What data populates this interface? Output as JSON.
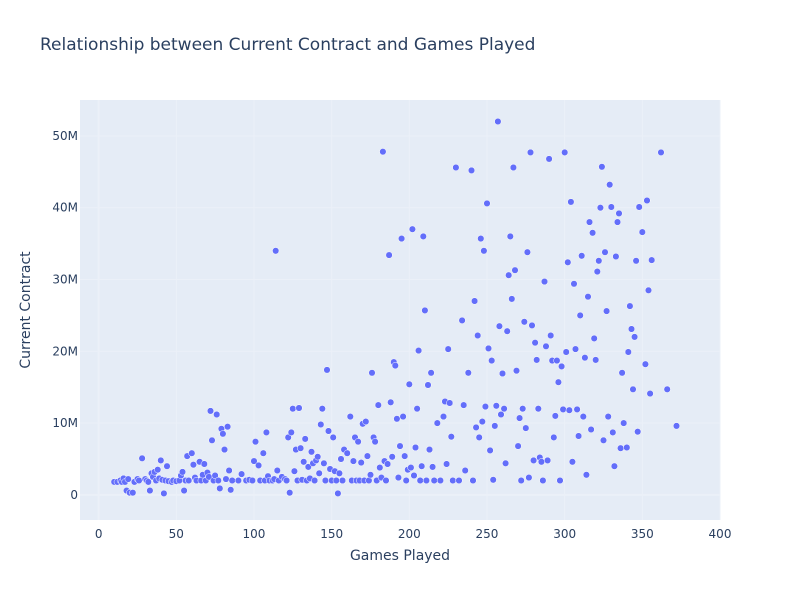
{
  "chart_data": {
    "type": "scatter",
    "title": "Relationship between Current Contract and Games Played",
    "xlabel": "Games Played",
    "ylabel": "Current Contract",
    "xlim": [
      -12,
      400
    ],
    "ylim": [
      -3500000,
      55000000
    ],
    "x_ticks": [
      0,
      50,
      100,
      150,
      200,
      250,
      300,
      350,
      400
    ],
    "x_tick_labels": [
      "0",
      "50",
      "100",
      "150",
      "200",
      "250",
      "300",
      "350",
      "400"
    ],
    "y_ticks": [
      0,
      10000000,
      20000000,
      30000000,
      40000000,
      50000000
    ],
    "y_tick_labels": [
      "0",
      "10M",
      "20M",
      "30M",
      "40M",
      "50M"
    ],
    "grid": true,
    "legend": "none",
    "marker_color": "#636efa",
    "series": [
      {
        "points": [
          [
            10,
            1.8
          ],
          [
            12,
            1.8
          ],
          [
            14,
            2.0
          ],
          [
            15,
            1.8
          ],
          [
            16,
            2.3
          ],
          [
            17,
            1.8
          ],
          [
            18,
            0.6
          ],
          [
            19,
            2.2
          ],
          [
            20,
            0.3
          ],
          [
            22,
            0.3
          ],
          [
            23,
            1.8
          ],
          [
            25,
            2.2
          ],
          [
            26,
            2.0
          ],
          [
            28,
            5.1
          ],
          [
            30,
            2.2
          ],
          [
            31,
            2.0
          ],
          [
            32,
            1.8
          ],
          [
            33,
            0.6
          ],
          [
            34,
            3.0
          ],
          [
            35,
            2.5
          ],
          [
            36,
            3.2
          ],
          [
            37,
            2.0
          ],
          [
            38,
            3.5
          ],
          [
            39,
            2.3
          ],
          [
            40,
            4.8
          ],
          [
            41,
            2.1
          ],
          [
            42,
            0.2
          ],
          [
            43,
            2.0
          ],
          [
            44,
            4.0
          ],
          [
            45,
            1.9
          ],
          [
            47,
            1.8
          ],
          [
            48,
            2.0
          ],
          [
            50,
            1.9
          ],
          [
            52,
            2.0
          ],
          [
            53,
            2.7
          ],
          [
            54,
            3.2
          ],
          [
            55,
            0.6
          ],
          [
            56,
            2.0
          ],
          [
            57,
            5.4
          ],
          [
            58,
            2.0
          ],
          [
            60,
            5.8
          ],
          [
            61,
            4.2
          ],
          [
            62,
            2.4
          ],
          [
            63,
            2.0
          ],
          [
            65,
            4.6
          ],
          [
            66,
            2.0
          ],
          [
            67,
            2.8
          ],
          [
            68,
            4.3
          ],
          [
            69,
            2.0
          ],
          [
            70,
            3.1
          ],
          [
            71,
            2.5
          ],
          [
            72,
            11.7
          ],
          [
            73,
            7.6
          ],
          [
            74,
            2.0
          ],
          [
            75,
            2.7
          ],
          [
            76,
            11.2
          ],
          [
            77,
            2.0
          ],
          [
            78,
            0.9
          ],
          [
            79,
            9.2
          ],
          [
            80,
            8.5
          ],
          [
            81,
            6.3
          ],
          [
            82,
            2.2
          ],
          [
            83,
            9.5
          ],
          [
            84,
            3.4
          ],
          [
            85,
            0.7
          ],
          [
            86,
            2.0
          ],
          [
            90,
            2.0
          ],
          [
            92,
            2.9
          ],
          [
            95,
            2.0
          ],
          [
            97,
            2.1
          ],
          [
            99,
            2.0
          ],
          [
            100,
            4.7
          ],
          [
            101,
            7.4
          ],
          [
            103,
            4.1
          ],
          [
            104,
            2.0
          ],
          [
            106,
            5.8
          ],
          [
            107,
            2.0
          ],
          [
            108,
            8.7
          ],
          [
            109,
            2.6
          ],
          [
            110,
            2.0
          ],
          [
            112,
            2.0
          ],
          [
            113,
            2.2
          ],
          [
            114,
            34.0
          ],
          [
            115,
            3.4
          ],
          [
            116,
            2.0
          ],
          [
            118,
            2.5
          ],
          [
            120,
            2.2
          ],
          [
            121,
            2.0
          ],
          [
            122,
            8.0
          ],
          [
            123,
            0.3
          ],
          [
            124,
            8.7
          ],
          [
            125,
            12.0
          ],
          [
            126,
            3.3
          ],
          [
            127,
            6.3
          ],
          [
            128,
            2.0
          ],
          [
            129,
            12.1
          ],
          [
            130,
            6.5
          ],
          [
            131,
            2.1
          ],
          [
            132,
            4.6
          ],
          [
            133,
            7.8
          ],
          [
            134,
            2.0
          ],
          [
            135,
            3.9
          ],
          [
            136,
            2.3
          ],
          [
            137,
            6.0
          ],
          [
            138,
            4.4
          ],
          [
            139,
            2.0
          ],
          [
            140,
            4.8
          ],
          [
            141,
            5.3
          ],
          [
            142,
            3.0
          ],
          [
            143,
            9.8
          ],
          [
            144,
            12.0
          ],
          [
            145,
            4.4
          ],
          [
            146,
            2.0
          ],
          [
            147,
            17.4
          ],
          [
            148,
            8.9
          ],
          [
            149,
            3.6
          ],
          [
            150,
            2.0
          ],
          [
            151,
            8.0
          ],
          [
            152,
            3.3
          ],
          [
            153,
            2.0
          ],
          [
            154,
            0.2
          ],
          [
            155,
            3.0
          ],
          [
            156,
            5.0
          ],
          [
            157,
            2.0
          ],
          [
            158,
            6.3
          ],
          [
            160,
            5.8
          ],
          [
            162,
            10.9
          ],
          [
            163,
            2.0
          ],
          [
            164,
            4.7
          ],
          [
            165,
            8.0
          ],
          [
            166,
            2.0
          ],
          [
            167,
            7.4
          ],
          [
            168,
            2.0
          ],
          [
            169,
            4.5
          ],
          [
            170,
            9.9
          ],
          [
            171,
            2.0
          ],
          [
            172,
            10.2
          ],
          [
            173,
            5.4
          ],
          [
            174,
            2.0
          ],
          [
            175,
            2.8
          ],
          [
            176,
            17.0
          ],
          [
            177,
            8.0
          ],
          [
            178,
            7.4
          ],
          [
            179,
            2.0
          ],
          [
            180,
            12.5
          ],
          [
            181,
            3.8
          ],
          [
            182,
            2.4
          ],
          [
            183,
            47.8
          ],
          [
            184,
            4.7
          ],
          [
            185,
            2.0
          ],
          [
            186,
            4.3
          ],
          [
            187,
            33.4
          ],
          [
            188,
            12.9
          ],
          [
            189,
            5.3
          ],
          [
            190,
            18.5
          ],
          [
            191,
            18.0
          ],
          [
            192,
            10.6
          ],
          [
            193,
            2.4
          ],
          [
            194,
            6.8
          ],
          [
            195,
            35.7
          ],
          [
            196,
            10.9
          ],
          [
            197,
            5.4
          ],
          [
            198,
            2.0
          ],
          [
            199,
            3.5
          ],
          [
            200,
            15.4
          ],
          [
            201,
            3.8
          ],
          [
            202,
            37.0
          ],
          [
            203,
            2.7
          ],
          [
            204,
            6.6
          ],
          [
            205,
            12.0
          ],
          [
            206,
            20.1
          ],
          [
            207,
            2.0
          ],
          [
            208,
            4.0
          ],
          [
            209,
            36.0
          ],
          [
            210,
            25.7
          ],
          [
            211,
            2.0
          ],
          [
            212,
            15.3
          ],
          [
            213,
            6.3
          ],
          [
            214,
            17.0
          ],
          [
            215,
            3.9
          ],
          [
            216,
            2.0
          ],
          [
            218,
            10.0
          ],
          [
            220,
            2.0
          ],
          [
            222,
            10.9
          ],
          [
            223,
            13.0
          ],
          [
            224,
            4.3
          ],
          [
            225,
            20.3
          ],
          [
            226,
            12.8
          ],
          [
            227,
            8.1
          ],
          [
            228,
            2.0
          ],
          [
            230,
            45.6
          ],
          [
            232,
            2.0
          ],
          [
            234,
            24.3
          ],
          [
            235,
            12.5
          ],
          [
            236,
            3.4
          ],
          [
            238,
            17.0
          ],
          [
            240,
            45.2
          ],
          [
            241,
            2.0
          ],
          [
            242,
            27.0
          ],
          [
            243,
            9.4
          ],
          [
            244,
            22.2
          ],
          [
            245,
            8.0
          ],
          [
            246,
            35.7
          ],
          [
            247,
            10.2
          ],
          [
            248,
            34.0
          ],
          [
            249,
            12.3
          ],
          [
            250,
            40.6
          ],
          [
            251,
            20.4
          ],
          [
            252,
            6.2
          ],
          [
            253,
            18.7
          ],
          [
            254,
            2.1
          ],
          [
            255,
            9.6
          ],
          [
            256,
            12.4
          ],
          [
            257,
            52.0
          ],
          [
            258,
            23.5
          ],
          [
            259,
            11.2
          ],
          [
            260,
            16.9
          ],
          [
            261,
            12.0
          ],
          [
            262,
            4.4
          ],
          [
            263,
            22.8
          ],
          [
            264,
            30.6
          ],
          [
            265,
            36.0
          ],
          [
            266,
            27.3
          ],
          [
            267,
            45.6
          ],
          [
            268,
            31.3
          ],
          [
            269,
            17.3
          ],
          [
            270,
            6.8
          ],
          [
            271,
            10.7
          ],
          [
            272,
            2.0
          ],
          [
            273,
            12.0
          ],
          [
            274,
            24.1
          ],
          [
            275,
            9.3
          ],
          [
            276,
            33.8
          ],
          [
            277,
            2.4
          ],
          [
            278,
            47.7
          ],
          [
            279,
            23.6
          ],
          [
            280,
            4.8
          ],
          [
            281,
            21.2
          ],
          [
            282,
            18.8
          ],
          [
            283,
            12.0
          ],
          [
            284,
            5.2
          ],
          [
            285,
            4.6
          ],
          [
            286,
            2.0
          ],
          [
            287,
            29.7
          ],
          [
            288,
            20.7
          ],
          [
            289,
            4.8
          ],
          [
            290,
            46.8
          ],
          [
            291,
            22.2
          ],
          [
            292,
            18.7
          ],
          [
            293,
            8.0
          ],
          [
            294,
            11.0
          ],
          [
            295,
            18.7
          ],
          [
            296,
            15.7
          ],
          [
            297,
            2.0
          ],
          [
            298,
            17.9
          ],
          [
            299,
            11.9
          ],
          [
            300,
            47.7
          ],
          [
            301,
            19.9
          ],
          [
            302,
            32.4
          ],
          [
            303,
            11.8
          ],
          [
            304,
            40.8
          ],
          [
            305,
            4.6
          ],
          [
            306,
            29.4
          ],
          [
            307,
            20.3
          ],
          [
            308,
            11.9
          ],
          [
            309,
            8.2
          ],
          [
            310,
            25.0
          ],
          [
            311,
            33.3
          ],
          [
            312,
            10.9
          ],
          [
            313,
            19.1
          ],
          [
            314,
            2.8
          ],
          [
            315,
            27.6
          ],
          [
            316,
            38.0
          ],
          [
            317,
            9.1
          ],
          [
            318,
            36.5
          ],
          [
            319,
            21.8
          ],
          [
            320,
            18.8
          ],
          [
            321,
            31.1
          ],
          [
            322,
            32.6
          ],
          [
            323,
            40.0
          ],
          [
            324,
            45.7
          ],
          [
            325,
            7.6
          ],
          [
            326,
            33.8
          ],
          [
            327,
            25.6
          ],
          [
            328,
            10.9
          ],
          [
            329,
            43.2
          ],
          [
            330,
            40.1
          ],
          [
            331,
            8.7
          ],
          [
            332,
            4.0
          ],
          [
            333,
            33.2
          ],
          [
            334,
            38.0
          ],
          [
            335,
            39.2
          ],
          [
            336,
            6.5
          ],
          [
            337,
            17.0
          ],
          [
            338,
            10.0
          ],
          [
            340,
            6.6
          ],
          [
            341,
            19.9
          ],
          [
            342,
            26.3
          ],
          [
            343,
            23.1
          ],
          [
            344,
            14.7
          ],
          [
            345,
            22.0
          ],
          [
            346,
            32.6
          ],
          [
            347,
            8.8
          ],
          [
            348,
            40.1
          ],
          [
            350,
            36.6
          ],
          [
            352,
            18.2
          ],
          [
            353,
            41.0
          ],
          [
            354,
            28.5
          ],
          [
            355,
            14.1
          ],
          [
            356,
            32.7
          ],
          [
            362,
            47.7
          ],
          [
            366,
            14.7
          ],
          [
            372,
            9.6
          ]
        ]
      }
    ]
  }
}
